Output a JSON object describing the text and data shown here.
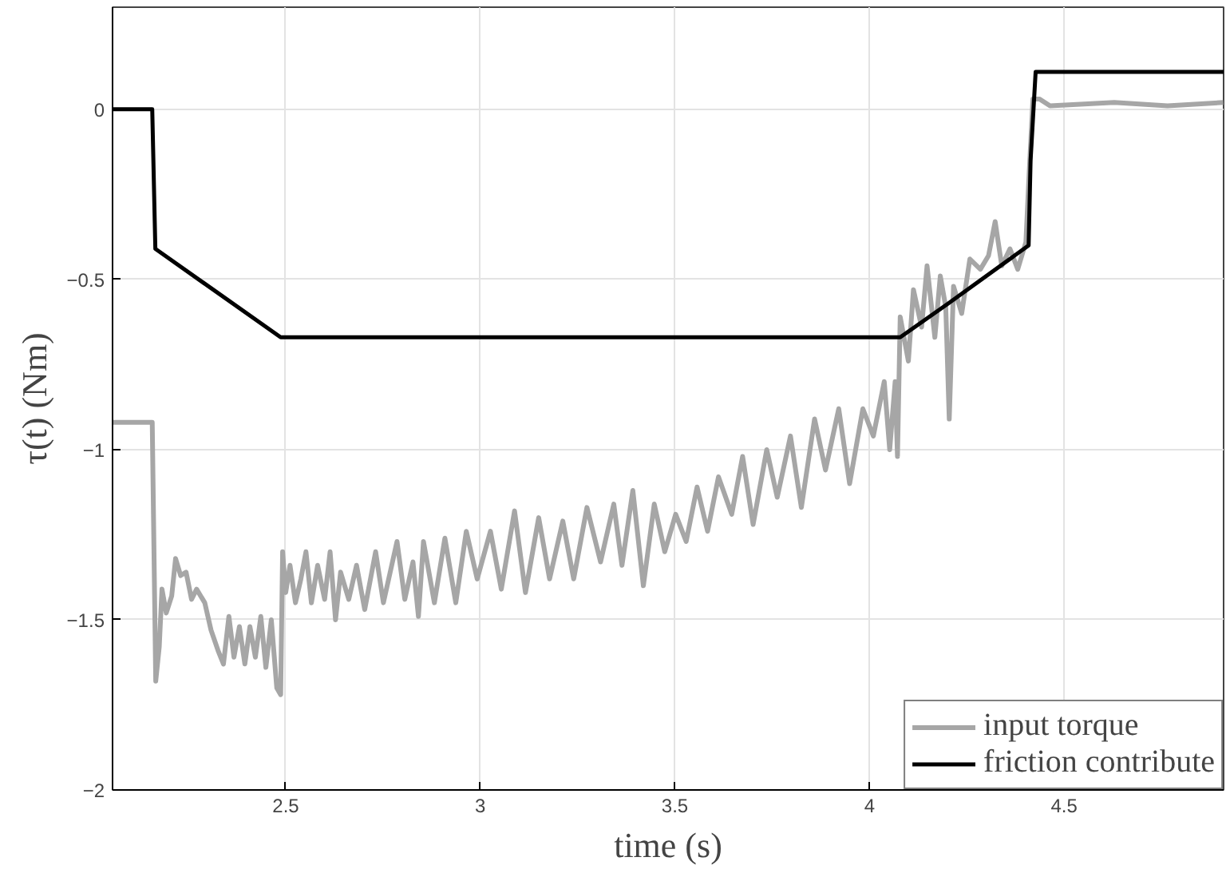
{
  "chart_data": {
    "type": "line",
    "xlabel": "time (s)",
    "ylabel": "τ(t) (Nm)",
    "xlim": [
      2.055,
      4.91
    ],
    "ylim": [
      -2,
      0.3
    ],
    "xticks": [
      2.5,
      3,
      3.5,
      4,
      4.5
    ],
    "yticks": [
      -2,
      -1.5,
      -1,
      -0.5,
      0
    ],
    "grid": true,
    "legend": "bottom right",
    "marker": "none",
    "line_style": "solid",
    "series": [
      {
        "name": "input torque",
        "color": "#a6a6a6",
        "x": [
          2.055,
          2.157,
          2.166,
          2.175,
          2.182,
          2.193,
          2.207,
          2.217,
          2.23,
          2.244,
          2.258,
          2.271,
          2.292,
          2.308,
          2.326,
          2.34,
          2.354,
          2.367,
          2.381,
          2.395,
          2.408,
          2.422,
          2.436,
          2.449,
          2.463,
          2.477,
          2.487,
          2.492,
          2.5,
          2.511,
          2.525,
          2.539,
          2.552,
          2.566,
          2.582,
          2.6,
          2.614,
          2.628,
          2.641,
          2.662,
          2.682,
          2.703,
          2.731,
          2.751,
          2.786,
          2.806,
          2.827,
          2.841,
          2.854,
          2.882,
          2.909,
          2.937,
          2.964,
          2.992,
          3.026,
          3.054,
          3.088,
          3.116,
          3.15,
          3.178,
          3.212,
          3.24,
          3.274,
          3.309,
          3.343,
          3.364,
          3.392,
          3.419,
          3.447,
          3.474,
          3.502,
          3.529,
          3.557,
          3.584,
          3.612,
          3.646,
          3.674,
          3.701,
          3.736,
          3.763,
          3.797,
          3.825,
          3.859,
          3.887,
          3.921,
          3.949,
          3.983,
          4.01,
          4.038,
          4.052,
          4.066,
          4.072,
          4.079,
          4.1,
          4.113,
          4.134,
          4.148,
          4.168,
          4.182,
          4.196,
          4.205,
          4.216,
          4.237,
          4.258,
          4.285,
          4.306,
          4.323,
          4.34,
          4.361,
          4.381,
          4.402,
          4.409,
          4.42,
          4.437,
          4.464,
          4.629,
          4.766,
          4.909
        ],
        "values": [
          -0.92,
          -0.92,
          -1.68,
          -1.58,
          -1.41,
          -1.48,
          -1.43,
          -1.32,
          -1.37,
          -1.36,
          -1.44,
          -1.41,
          -1.45,
          -1.53,
          -1.59,
          -1.63,
          -1.49,
          -1.61,
          -1.52,
          -1.63,
          -1.52,
          -1.61,
          -1.49,
          -1.64,
          -1.5,
          -1.7,
          -1.72,
          -1.3,
          -1.42,
          -1.34,
          -1.45,
          -1.38,
          -1.3,
          -1.45,
          -1.34,
          -1.44,
          -1.3,
          -1.5,
          -1.36,
          -1.44,
          -1.34,
          -1.47,
          -1.3,
          -1.45,
          -1.27,
          -1.44,
          -1.33,
          -1.49,
          -1.27,
          -1.45,
          -1.26,
          -1.45,
          -1.24,
          -1.38,
          -1.24,
          -1.41,
          -1.18,
          -1.42,
          -1.2,
          -1.38,
          -1.21,
          -1.38,
          -1.17,
          -1.33,
          -1.16,
          -1.34,
          -1.12,
          -1.4,
          -1.16,
          -1.3,
          -1.19,
          -1.27,
          -1.11,
          -1.24,
          -1.08,
          -1.19,
          -1.02,
          -1.22,
          -1.0,
          -1.14,
          -0.96,
          -1.17,
          -0.91,
          -1.06,
          -0.88,
          -1.1,
          -0.88,
          -0.96,
          -0.8,
          -1.0,
          -0.8,
          -1.02,
          -0.61,
          -0.74,
          -0.53,
          -0.64,
          -0.46,
          -0.67,
          -0.49,
          -0.58,
          -0.91,
          -0.52,
          -0.6,
          -0.44,
          -0.47,
          -0.43,
          -0.33,
          -0.46,
          -0.41,
          -0.47,
          -0.39,
          -0.22,
          0.03,
          0.03,
          0.01,
          0.02,
          0.01,
          0.02
        ]
      },
      {
        "name": "friction contribute",
        "color": "#000000",
        "x": [
          2.055,
          2.157,
          2.165,
          2.487,
          4.079,
          4.203,
          4.409,
          4.414,
          4.427,
          4.91
        ],
        "values": [
          0,
          0,
          -0.41,
          -0.67,
          -0.67,
          -0.57,
          -0.4,
          -0.15,
          0.11,
          0.11
        ]
      }
    ]
  }
}
